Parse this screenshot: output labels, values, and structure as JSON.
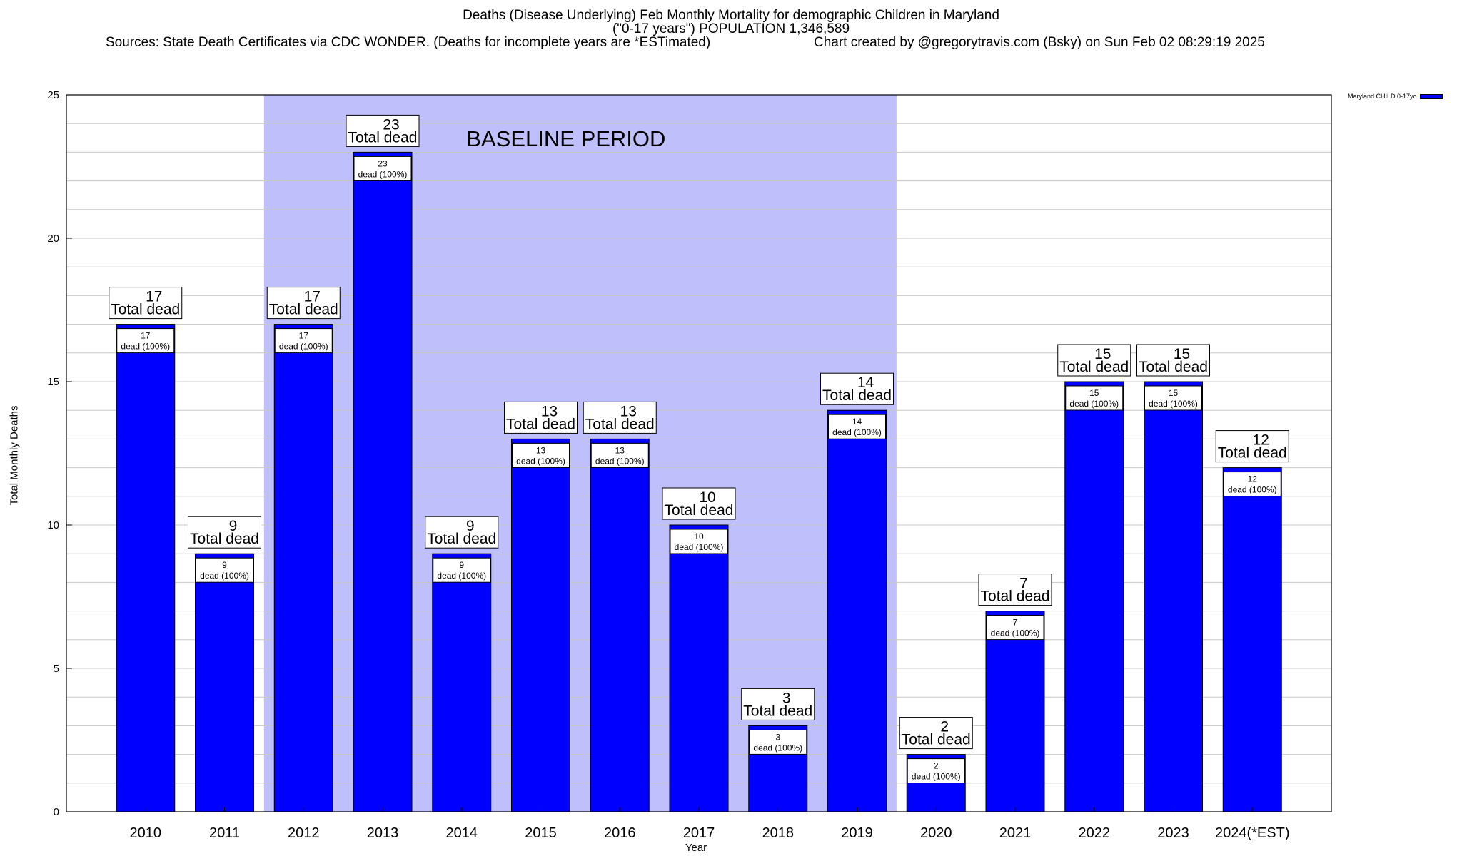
{
  "chart_data": {
    "type": "bar",
    "title": "Deaths (Disease Underlying) Feb Monthly Mortality for demographic Children in Maryland",
    "subtitle": "(\"0-17 years\") POPULATION 1,346,589",
    "sources": "Sources: State Death Certificates via CDC WONDER. (Deaths for incomplete years are *ESTimated)",
    "credit": "Chart created by @gregorytravis.com (Bsky) on Sun Feb 02 08:29:19 2025",
    "xlabel": "Year",
    "ylabel": "Total Monthly Deaths",
    "ylim": [
      0,
      25
    ],
    "yticks": [
      0,
      5,
      10,
      15,
      20,
      25
    ],
    "grid": true,
    "legend_position": "top-right",
    "categories": [
      "2010",
      "2011",
      "2012",
      "2013",
      "2014",
      "2015",
      "2016",
      "2017",
      "2018",
      "2019",
      "2020",
      "2021",
      "2022",
      "2023",
      "2024(*EST)"
    ],
    "series": [
      {
        "name": "Maryland CHILD 0-17yo",
        "values": [
          17,
          9,
          17,
          23,
          9,
          13,
          13,
          10,
          3,
          14,
          2,
          7,
          15,
          15,
          12
        ]
      }
    ],
    "total_label_suffix": "Total dead",
    "inner_label_suffix": "dead (100%)",
    "annotation": {
      "text": "BASELINE PERIOD",
      "from_category": "2012",
      "to_category": "2019"
    },
    "colors": {
      "bar": "#0000ff",
      "baseline_shade": "#bfbffc",
      "grid": "#c8c8c8"
    }
  }
}
